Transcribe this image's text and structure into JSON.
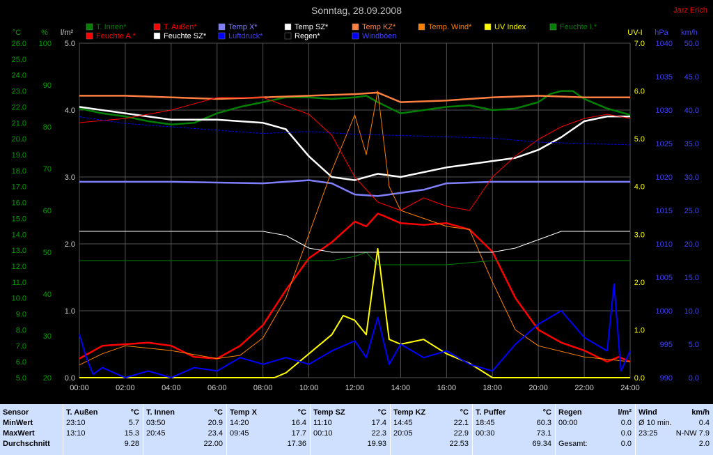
{
  "chart_data": {
    "type": "line",
    "title": "Sonntag, 28.09.2008",
    "author": "Jarz Erich",
    "x_ticks": [
      "00:00",
      "02:00",
      "04:00",
      "06:00",
      "08:00",
      "10:00",
      "12:00",
      "14:00",
      "16:00",
      "18:00",
      "20:00",
      "22:00",
      "24:00"
    ],
    "axes": {
      "temp_c": {
        "unit": "°C",
        "ticks": [
          "26.0",
          "25.0",
          "24.0",
          "23.0",
          "22.0",
          "21.0",
          "20.0",
          "19.0",
          "18.0",
          "17.0",
          "16.0",
          "15.0",
          "14.0",
          "13.0",
          "12.0",
          "11.0",
          "10.0",
          "9.0",
          "8.0",
          "7.0",
          "6.0",
          "5.0"
        ]
      },
      "humidity_pct": {
        "unit": "%",
        "ticks": [
          "100",
          "90",
          "80",
          "70",
          "60",
          "50",
          "40",
          "30",
          "20"
        ]
      },
      "rain_lm2": {
        "unit": "l/m²",
        "ticks": [
          "5.0",
          "4.0",
          "3.0",
          "2.0",
          "1.0",
          "0.0"
        ]
      },
      "uv": {
        "unit": "UV-I",
        "ticks": [
          "7.0",
          "6.0",
          "5.0",
          "4.0",
          "3.0",
          "2.0",
          "1.0",
          "0.0"
        ]
      },
      "pressure_hpa": {
        "unit": "hPa",
        "ticks": [
          "1040",
          "1035",
          "1030",
          "1025",
          "1020",
          "1015",
          "1010",
          "1005",
          "1000",
          "995",
          "990"
        ]
      },
      "wind_kmh": {
        "unit": "km/h",
        "ticks": [
          "50.0",
          "45.0",
          "40.0",
          "35.0",
          "30.0",
          "25.0",
          "20.0",
          "15.0",
          "10.0",
          "5.0",
          "0.0"
        ]
      }
    },
    "legend": [
      {
        "name": "T. Innen*",
        "color": "#008000"
      },
      {
        "name": "T. Außen*",
        "color": "#ff0000"
      },
      {
        "name": "Temp X*",
        "color": "#8080ff"
      },
      {
        "name": "Temp SZ*",
        "color": "#ffffff"
      },
      {
        "name": "Temp KZ*",
        "color": "#ff8040"
      },
      {
        "name": "Temp. Wind*",
        "color": "#ff8000"
      },
      {
        "name": "UV Index",
        "color": "#ffff00"
      },
      {
        "name": "Feuchte I.*",
        "color": "#008000"
      },
      {
        "name": "Feuchte A.*",
        "color": "#ff0000"
      },
      {
        "name": "Feuchte SZ*",
        "color": "#ffffff"
      },
      {
        "name": "Luftdruck*",
        "color": "#0000ff"
      },
      {
        "name": "Regen*",
        "color": "#000000"
      },
      {
        "name": "Windböen",
        "color": "#0000ff"
      }
    ],
    "series": [
      {
        "name": "T. Außen*",
        "axis": "temp_c",
        "x": [
          0,
          1,
          2,
          3,
          4,
          5,
          6,
          7,
          8,
          9,
          10,
          11,
          12,
          12.5,
          13,
          13.2,
          14,
          15,
          16,
          17,
          18,
          19,
          20,
          21,
          22,
          23,
          23.5,
          24
        ],
        "y": [
          6.2,
          7.0,
          7.1,
          7.2,
          7.0,
          6.3,
          6.2,
          7.0,
          8.3,
          10.5,
          12.5,
          13.5,
          14.8,
          14.5,
          15.3,
          15.2,
          14.7,
          14.6,
          14.7,
          14.3,
          12.9,
          10.0,
          8.0,
          7.2,
          6.7,
          6.0,
          6.3,
          6.0
        ]
      },
      {
        "name": "T. Innen*",
        "axis": "temp_c",
        "x": [
          0,
          1,
          2,
          3,
          4,
          5,
          6,
          7,
          8,
          9,
          10,
          11,
          12,
          12.5,
          13,
          14,
          15,
          16,
          17,
          18,
          19,
          20,
          20.5,
          21,
          21.5,
          22,
          23,
          24
        ],
        "y": [
          21.9,
          21.6,
          21.4,
          21.1,
          20.9,
          21.0,
          21.6,
          22.0,
          22.3,
          22.6,
          22.6,
          22.5,
          22.6,
          22.7,
          22.3,
          21.6,
          21.8,
          22.0,
          22.1,
          21.8,
          21.9,
          22.3,
          22.8,
          23.0,
          23.0,
          22.5,
          21.9,
          21.5
        ]
      },
      {
        "name": "Temp X*",
        "axis": "temp_c",
        "x": [
          0,
          4,
          8,
          10,
          11,
          12,
          13,
          14,
          15,
          16,
          18,
          20,
          24
        ],
        "y": [
          17.3,
          17.3,
          17.2,
          17.4,
          17.2,
          16.5,
          16.4,
          16.6,
          16.8,
          17.2,
          17.3,
          17.3,
          17.3
        ]
      },
      {
        "name": "Temp SZ*",
        "axis": "temp_c",
        "x": [
          0,
          2,
          4,
          6,
          8,
          9,
          10,
          11,
          12,
          13,
          14,
          15,
          16,
          17,
          18,
          19,
          20,
          21,
          22,
          23,
          24
        ],
        "y": [
          22.0,
          21.6,
          21.2,
          21.2,
          21.0,
          20.6,
          18.9,
          17.6,
          17.4,
          17.8,
          17.6,
          17.9,
          18.2,
          18.4,
          18.6,
          18.8,
          19.3,
          20.1,
          21.1,
          21.4,
          21.4
        ]
      },
      {
        "name": "Temp KZ*",
        "axis": "temp_c",
        "x": [
          0,
          2,
          4,
          6,
          8,
          10,
          12,
          13,
          14,
          16,
          18,
          20,
          22,
          24
        ],
        "y": [
          22.7,
          22.7,
          22.6,
          22.5,
          22.6,
          22.7,
          22.8,
          22.9,
          22.3,
          22.4,
          22.6,
          22.7,
          22.6,
          22.6
        ]
      },
      {
        "name": "Temp. Wind*",
        "axis": "temp_c",
        "x": [
          0,
          1,
          2,
          4,
          6,
          7,
          8,
          9,
          10,
          11,
          12,
          12.5,
          13,
          13.5,
          14,
          15,
          16,
          17,
          18,
          19,
          20,
          22,
          24
        ],
        "y": [
          5.8,
          6.5,
          7.0,
          6.7,
          6.2,
          6.4,
          7.5,
          10.0,
          14.0,
          18.0,
          21.5,
          19.0,
          23.0,
          17.0,
          15.5,
          15.0,
          14.5,
          14.3,
          11.0,
          8.0,
          7.0,
          6.3,
          6.0
        ]
      },
      {
        "name": "Feuchte A.*",
        "axis": "humidity_pct",
        "x": [
          0,
          2,
          4,
          6,
          8,
          9,
          10,
          11,
          12,
          13,
          14,
          15,
          16,
          17,
          18,
          19,
          20,
          21,
          22,
          23,
          24
        ],
        "y": [
          81,
          82,
          84,
          87,
          87,
          85,
          83,
          78,
          68,
          62,
          60,
          63,
          61,
          60,
          68,
          73,
          77,
          80,
          82,
          83,
          82
        ]
      },
      {
        "name": "Feuchte I.*",
        "axis": "humidity_pct",
        "x": [
          0,
          4,
          8,
          10,
          11,
          12,
          12.5,
          13,
          14,
          16,
          18,
          20,
          22,
          24
        ],
        "y": [
          48,
          48,
          48,
          48,
          48,
          49,
          50,
          47,
          47,
          47,
          48,
          48,
          48,
          48
        ]
      },
      {
        "name": "Feuchte SZ*",
        "axis": "humidity_pct",
        "x": [
          0,
          2,
          4,
          6,
          8,
          9,
          10,
          11,
          12,
          14,
          16,
          18,
          19,
          20,
          21,
          22,
          24
        ],
        "y": [
          55,
          55,
          55,
          55,
          55,
          54,
          51,
          50,
          50,
          50,
          50,
          50,
          51,
          53,
          55,
          55,
          55
        ]
      },
      {
        "name": "Luftdruck*",
        "axis": "pressure_hpa",
        "x": [
          0,
          2,
          4,
          6,
          8,
          10,
          12,
          14,
          16,
          18,
          20,
          22,
          24
        ],
        "y": [
          1029,
          1028,
          1027.5,
          1027,
          1026.5,
          1026.8,
          1026.4,
          1026.2,
          1026.0,
          1025.8,
          1025.2,
          1025.0,
          1024.8
        ]
      },
      {
        "name": "UV Index",
        "axis": "uv",
        "x": [
          0,
          8,
          8.5,
          9,
          10,
          11,
          11.5,
          12,
          12.5,
          13,
          13.5,
          14,
          15,
          16,
          17,
          18,
          24
        ],
        "y": [
          0,
          0,
          0,
          0.1,
          0.5,
          0.9,
          1.3,
          1.2,
          0.9,
          2.7,
          0.8,
          0.7,
          0.8,
          0.5,
          0.3,
          0,
          0
        ]
      },
      {
        "name": "Windböen",
        "axis": "wind_kmh",
        "x": [
          0,
          0.3,
          0.6,
          1,
          2,
          3,
          4,
          5,
          6,
          7,
          8,
          9,
          10,
          11,
          12,
          12.5,
          13,
          13.5,
          14,
          15,
          16,
          17,
          18,
          19,
          20,
          21,
          22,
          23,
          23.3,
          23.6,
          24
        ],
        "y": [
          6.5,
          3.0,
          0.5,
          1.5,
          0,
          1.0,
          0,
          1.5,
          1.0,
          3.0,
          2.0,
          3.0,
          2.0,
          4.0,
          5.5,
          3.0,
          9.0,
          2.0,
          5.0,
          3.0,
          4.0,
          2.0,
          1.0,
          5.0,
          8.0,
          10.0,
          6.0,
          4.0,
          14.0,
          1.0,
          4.0
        ]
      }
    ]
  },
  "table": {
    "row_labels": [
      "Sensor",
      "MinWert",
      "MaxWert",
      "Durchschnitt"
    ],
    "columns": [
      {
        "name": "T. Außen",
        "unit": "°C",
        "min_time": "23:10",
        "min": "5.7",
        "max_time": "13:10",
        "max": "15.3",
        "avg": "9.28"
      },
      {
        "name": "T. Innen",
        "unit": "°C",
        "min_time": "03:50",
        "min": "20.9",
        "max_time": "20:45",
        "max": "23.4",
        "avg": "22.00"
      },
      {
        "name": "Temp X",
        "unit": "°C",
        "min_time": "14:20",
        "min": "16.4",
        "max_time": "09:45",
        "max": "17.7",
        "avg": "17.36"
      },
      {
        "name": "Temp SZ",
        "unit": "°C",
        "min_time": "11:10",
        "min": "17.4",
        "max_time": "00:10",
        "max": "22.3",
        "avg": "19.93"
      },
      {
        "name": "Temp KZ",
        "unit": "°C",
        "min_time": "14:45",
        "min": "22.1",
        "max_time": "20:05",
        "max": "22.9",
        "avg": "22.53"
      },
      {
        "name": "T. Puffer",
        "unit": "°C",
        "min_time": "18:45",
        "min": "60.3",
        "max_time": "00:30",
        "max": "73.1",
        "avg": "69.34"
      },
      {
        "name": "Regen",
        "unit": "l/m²",
        "min_time": "00:00",
        "min": "0.0",
        "max_time": "",
        "max": "0.0",
        "avg_label": "Gesamt:",
        "avg": "0.0"
      },
      {
        "name": "Wind",
        "unit": "km/h",
        "min_time": "Ø 10 min.",
        "min": "0.4",
        "max_time": "23:25",
        "max": "N-NW 7.9",
        "avg": "2.0"
      }
    ]
  }
}
